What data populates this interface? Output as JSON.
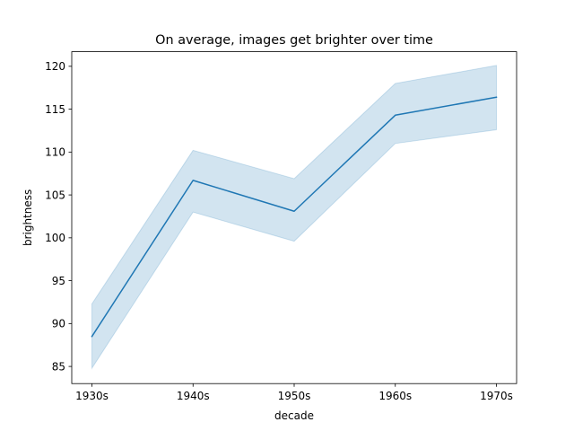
{
  "chart_data": {
    "type": "line",
    "title": "On average, images get brighter over time",
    "xlabel": "decade",
    "ylabel": "brightness",
    "categories": [
      "1930s",
      "1940s",
      "1950s",
      "1960s",
      "1970s"
    ],
    "series": [
      {
        "values": [
          88.5,
          106.7,
          103.1,
          114.3,
          116.4
        ],
        "ci_lower": [
          84.8,
          103.0,
          99.6,
          111.0,
          112.6
        ],
        "ci_upper": [
          92.3,
          110.2,
          106.9,
          118.0,
          120.1
        ]
      }
    ],
    "y_ticks": [
      85,
      90,
      95,
      100,
      105,
      110,
      115,
      120
    ],
    "ylim": [
      83.0,
      121.7
    ],
    "grid": false,
    "legend": "none",
    "colors": {
      "line": "#1f77b4",
      "band": "#1f77b4",
      "axis": "#000000"
    }
  }
}
